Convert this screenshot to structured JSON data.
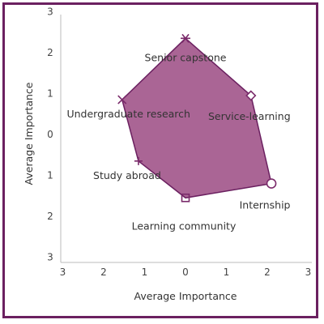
{
  "chart_data": {
    "type": "scatter",
    "xlabel": "Average Importance",
    "ylabel": "Average Importance",
    "xlim": [
      -3,
      3
    ],
    "ylim": [
      -3,
      3
    ],
    "x_ticks": [
      -3,
      -2,
      -1,
      0,
      1,
      2,
      3
    ],
    "x_tick_labels": [
      "3",
      "2",
      "1",
      "0",
      "1",
      "2",
      "3"
    ],
    "y_ticks": [
      3,
      2,
      1,
      0,
      -1,
      -2,
      -3
    ],
    "y_tick_labels": [
      "3",
      "2",
      "1",
      "0",
      "1",
      "2",
      "3"
    ],
    "grid": false,
    "fill_color": "#9b4a82",
    "fill_opacity": 0.85,
    "stroke_color": "#6b2060",
    "marker_color": "#7a2a6a",
    "points": [
      {
        "label": "Senior capstone",
        "x": 0.0,
        "y": 2.35,
        "marker": "star"
      },
      {
        "label": "Service-learning",
        "x": 1.6,
        "y": 0.95,
        "marker": "diamond"
      },
      {
        "label": "Internship",
        "x": 2.1,
        "y": -1.2,
        "marker": "circle"
      },
      {
        "label": "Learning community",
        "x": 0.0,
        "y": -1.55,
        "marker": "square"
      },
      {
        "label": "Study abroad",
        "x": -1.15,
        "y": -0.65,
        "marker": "plus"
      },
      {
        "label": "Undergraduate research",
        "x": -1.55,
        "y": 0.85,
        "marker": "x"
      }
    ]
  }
}
